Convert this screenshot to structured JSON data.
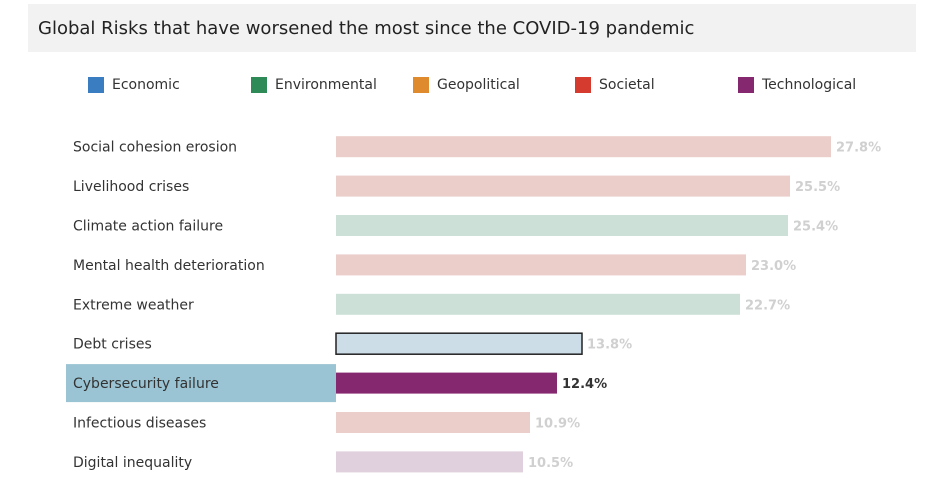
{
  "title": "Global Risks that have worsened the most since the COVID-19 pandemic",
  "legend": [
    {
      "label": "Economic",
      "color": "#3a7dc0"
    },
    {
      "label": "Environmental",
      "color": "#2e8b57"
    },
    {
      "label": "Geopolitical",
      "color": "#e08a2e"
    },
    {
      "label": "Societal",
      "color": "#d63b2f"
    },
    {
      "label": "Technological",
      "color": "#85286f"
    }
  ],
  "chart_data": {
    "type": "bar",
    "orientation": "horizontal",
    "categories": [
      "Social cohesion erosion",
      "Livelihood crises",
      "Climate action failure",
      "Mental health deterioration",
      "Extreme weather",
      "Debt crises",
      "Cybersecurity failure",
      "Infectious diseases",
      "Digital inequality"
    ],
    "values": [
      27.8,
      25.5,
      25.4,
      23.0,
      22.7,
      13.8,
      12.4,
      10.9,
      10.5
    ],
    "value_labels": [
      "27.8%",
      "25.5%",
      "25.4%",
      "23.0%",
      "22.7%",
      "13.8%",
      "12.4%",
      "10.9%",
      "10.5%"
    ],
    "groups": [
      "Societal",
      "Societal",
      "Environmental",
      "Societal",
      "Environmental",
      "Economic",
      "Technological",
      "Societal",
      "Technological"
    ],
    "bar_colors": [
      "#ebcdca",
      "#ebcdca",
      "#cde0d7",
      "#ebcdca",
      "#cde0d7",
      "#cddde8",
      "#85286f",
      "#ebcdca",
      "#e0cfdc"
    ],
    "highlighted": "Cybersecurity failure",
    "selected": "Debt crises",
    "highlight_row_color": "#9ac4d3",
    "xlim": [
      0,
      27.8
    ],
    "xlabel": "",
    "ylabel": ""
  }
}
